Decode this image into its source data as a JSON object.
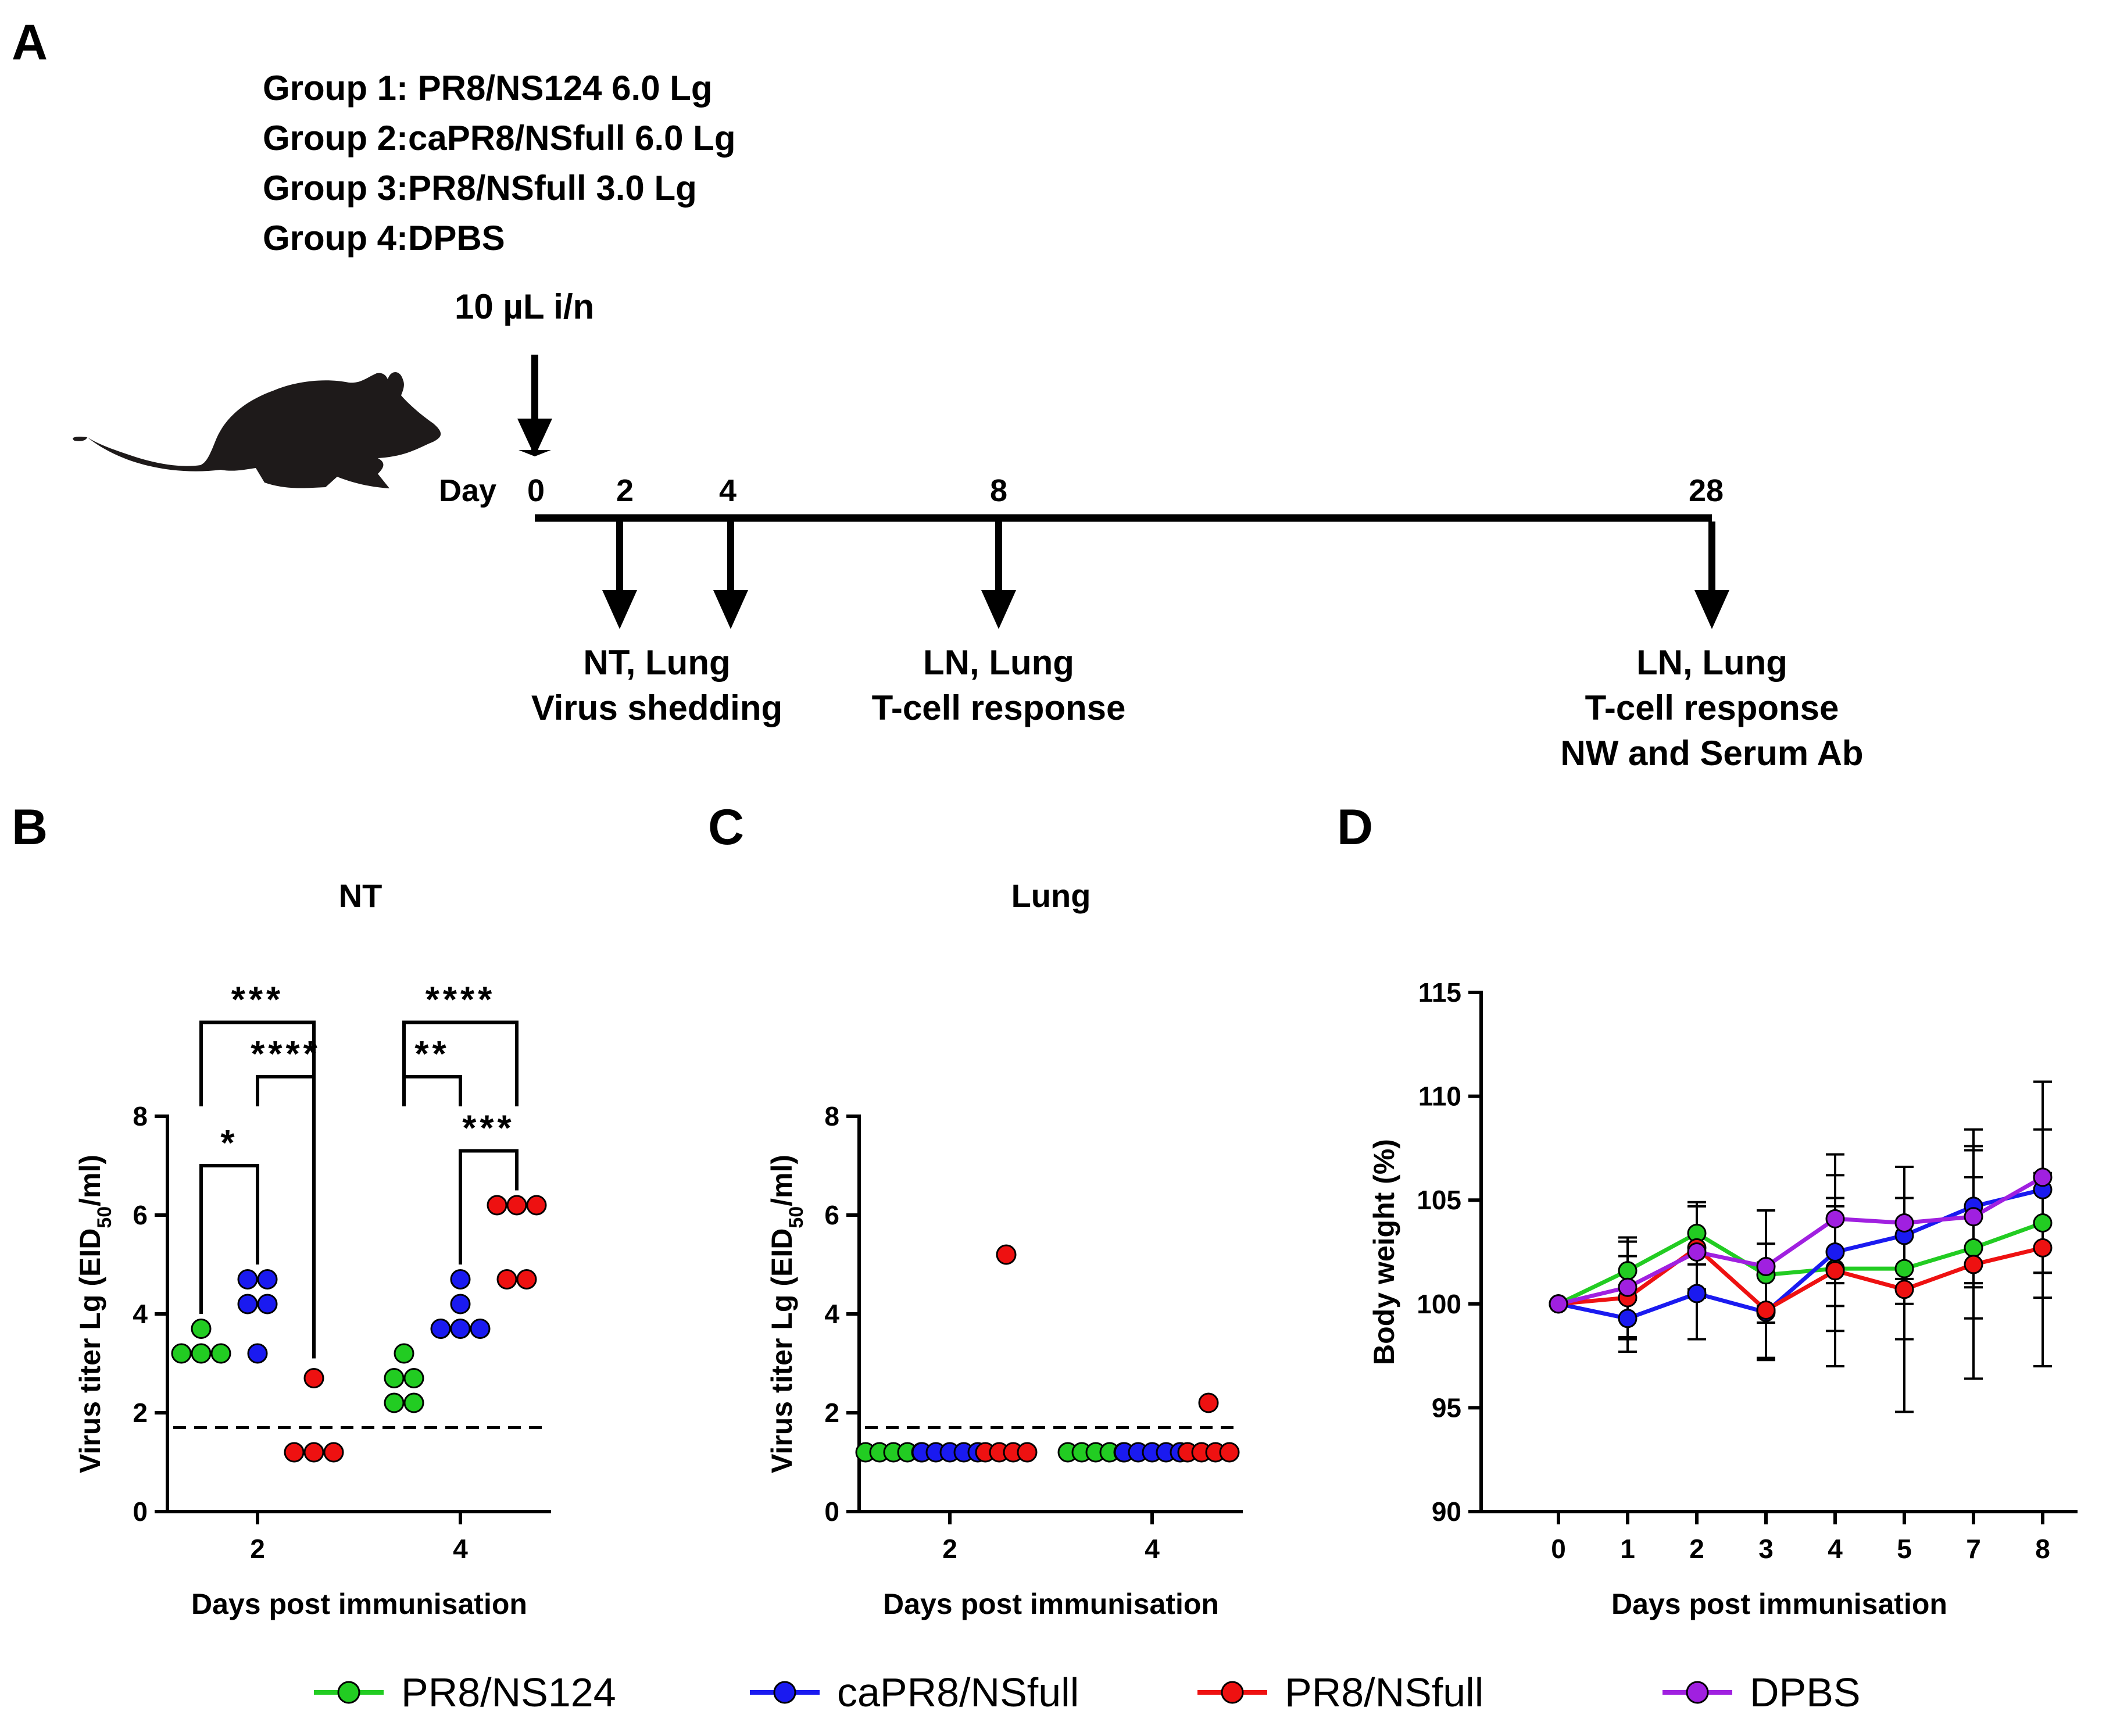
{
  "panel_A": {
    "letter": "A",
    "groups": [
      "Group 1: PR8/NS124 6.0 Lg",
      "Group 2:caPR8/NSfull 6.0 Lg",
      "Group 3:PR8/NSfull 3.0 Lg",
      "Group 4:DPBS"
    ],
    "dose": "10 µL i/n",
    "day_label": "Day",
    "days": [
      "0",
      "2",
      "4",
      "8",
      "28"
    ],
    "sample_labels": {
      "d2_4": [
        "NT, Lung",
        "Virus shedding"
      ],
      "d8": [
        "LN, Lung",
        "T-cell response"
      ],
      "d28": [
        "LN, Lung",
        "T-cell response",
        "NW and Serum Ab"
      ]
    }
  },
  "colors": {
    "PR8/NS124": "#22cc22",
    "caPR8/NSfull": "#1a1af0",
    "PR8/NSfull": "#ee1111",
    "DPBS": "#a020e0"
  },
  "legend": [
    "PR8/NS124",
    "caPR8/NSfull",
    "PR8/NSfull",
    "DPBS"
  ],
  "chart_data": [
    {
      "panel": "B",
      "type": "scatter",
      "title": "NT",
      "xlabel": "Days post immunisation",
      "ylabel_main": "Virus titer Lg (EID",
      "ylabel_sub": "50",
      "ylabel_end": "/ml)",
      "categories": [
        "2",
        "4"
      ],
      "ylim": [
        0,
        8
      ],
      "yticks": [
        0,
        2,
        4,
        6,
        8
      ],
      "detection_limit": 1.7,
      "series": [
        {
          "name": "PR8/NS124",
          "values": {
            "2": [
              3.7,
              3.2,
              3.2,
              3.2
            ],
            "4": [
              3.2,
              2.7,
              2.7,
              2.2,
              2.2
            ]
          }
        },
        {
          "name": "caPR8/NSfull",
          "values": {
            "2": [
              4.7,
              4.7,
              4.2,
              4.2,
              3.2
            ],
            "4": [
              4.7,
              4.2,
              3.7,
              3.7,
              3.7
            ]
          }
        },
        {
          "name": "PR8/NSfull",
          "values": {
            "2": [
              2.7,
              1.2,
              1.2,
              1.2
            ],
            "4": [
              6.2,
              6.2,
              6.2,
              4.7,
              4.7
            ]
          }
        }
      ],
      "significance": [
        {
          "label": "***"
        },
        {
          "label": "****"
        },
        {
          "label": "*"
        },
        {
          "label": "****"
        },
        {
          "label": "**"
        },
        {
          "label": "***"
        }
      ]
    },
    {
      "panel": "C",
      "type": "scatter",
      "title": "Lung",
      "xlabel": "Days post immunisation",
      "ylabel_main": "Virus titer Lg (EID",
      "ylabel_sub": "50",
      "ylabel_end": "/ml)",
      "categories": [
        "2",
        "4"
      ],
      "ylim": [
        0,
        8
      ],
      "yticks": [
        0,
        2,
        4,
        6,
        8
      ],
      "detection_limit": 1.7,
      "series": [
        {
          "name": "PR8/NS124",
          "values": {
            "2": [
              1.2,
              1.2,
              1.2,
              1.2,
              1.2
            ],
            "4": [
              1.2,
              1.2,
              1.2,
              1.2,
              1.2
            ]
          }
        },
        {
          "name": "caPR8/NSfull",
          "values": {
            "2": [
              1.2,
              1.2,
              1.2,
              1.2,
              1.2
            ],
            "4": [
              1.2,
              1.2,
              1.2,
              1.2,
              1.2
            ]
          }
        },
        {
          "name": "PR8/NSfull",
          "values": {
            "2": [
              5.2,
              1.2,
              1.2,
              1.2,
              1.2
            ],
            "4": [
              2.2,
              1.2,
              1.2,
              1.2,
              1.2
            ]
          }
        }
      ]
    },
    {
      "panel": "D",
      "type": "line",
      "title": "",
      "xlabel": "Days post immunisation",
      "ylabel": "Body weight (%)",
      "categories": [
        "0",
        "1",
        "2",
        "3",
        "4",
        "5",
        "7",
        "8"
      ],
      "ylim": [
        90,
        115
      ],
      "yticks": [
        90,
        95,
        100,
        105,
        110,
        115
      ],
      "series": [
        {
          "name": "PR8/NS124",
          "values": [
            100,
            101.6,
            103.4,
            101.4,
            101.7,
            101.7,
            102.7,
            103.9
          ],
          "err": [
            0,
            1.4,
            1.5,
            1.5,
            3.0,
            3.4,
            3.4,
            2.4
          ]
        },
        {
          "name": "caPR8/NSfull",
          "values": [
            100,
            99.3,
            100.5,
            99.6,
            102.5,
            103.3,
            104.7,
            105.5
          ],
          "err": [
            0,
            1.6,
            2.2,
            2.3,
            2.6,
            3.3,
            3.7,
            5.2
          ]
        },
        {
          "name": "PR8/NSfull",
          "values": [
            100,
            100.3,
            102.7,
            99.7,
            101.6,
            100.7,
            101.9,
            102.7
          ],
          "err": [
            0,
            2.0,
            2.0,
            2.3,
            4.6,
            5.9,
            5.5,
            5.7
          ]
        },
        {
          "name": "DPBS",
          "values": [
            100,
            100.8,
            102.5,
            101.8,
            104.1,
            103.9,
            104.2,
            106.1
          ],
          "err": [
            0,
            2.4,
            2.2,
            2.7,
            3.1,
            2.7,
            3.4,
            4.6
          ]
        }
      ]
    }
  ]
}
